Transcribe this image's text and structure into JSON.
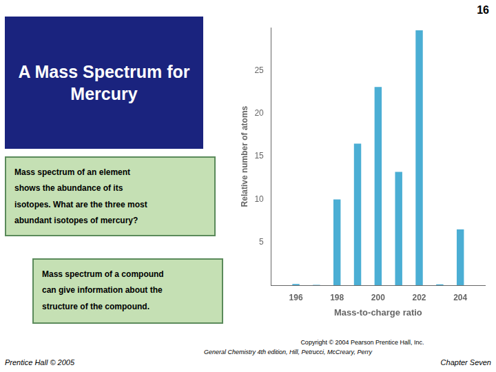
{
  "chart_data": {
    "type": "bar",
    "title": "A Mass Spectrum for\nMercury",
    "x": [
      196,
      197,
      198,
      199,
      200,
      201,
      202,
      203,
      204
    ],
    "values": [
      0.15,
      0.05,
      10.0,
      16.5,
      23.1,
      13.2,
      29.7,
      0.1,
      6.5
    ],
    "color": "#4BAED4",
    "xlabel": "Mass-to-charge ratio",
    "ylabel": "Relative number of atoms",
    "xlim": [
      194.8,
      205.2
    ],
    "xticks": [
      196,
      198,
      200,
      202,
      204
    ],
    "ylim": [
      0,
      30
    ],
    "yticks": [
      5,
      10,
      15,
      20,
      25
    ],
    "grid": false,
    "annotations": [
      "Mass spectrum of an element\nshows the abundance of its\nisotopes. What are the three most\nabundant isotopes of mercury?",
      "Mass spectrum of a compound\ncan give information about the\nstructure of the compound.",
      "16",
      "Prentice Hall © 2005",
      "Chapter Seven",
      "Copyright © 2004 Pearson Prentice Hall, Inc.",
      "General Chemistry 4th edition, Hill, Petrucci, McCreary, Perry"
    ]
  }
}
